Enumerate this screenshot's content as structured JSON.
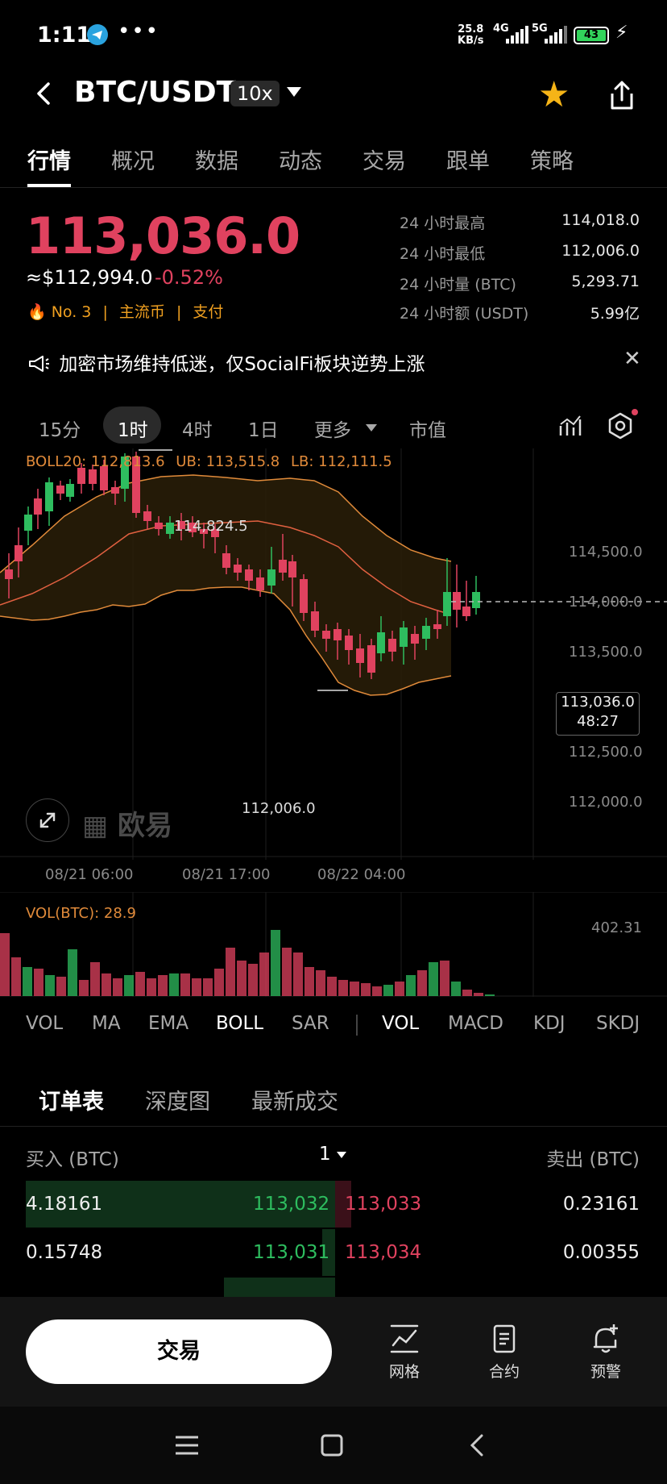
{
  "status_bar": {
    "time": "1:11",
    "net_speed_value": "25.8",
    "net_speed_unit": "KB/s",
    "sig_1": "4G",
    "sig_2": "5G",
    "battery": "43"
  },
  "header": {
    "pair": "BTC/USDT",
    "leverage": "10x"
  },
  "tabs": [
    "行情",
    "概况",
    "数据",
    "动态",
    "交易",
    "跟单",
    "策略"
  ],
  "price": {
    "last": "113,036.0",
    "approx_usd": "≈$112,994.0",
    "change": "-0.52%",
    "rank": "No. 3",
    "tag1": "主流币",
    "tag2": "支付"
  },
  "stats": [
    {
      "label": "24 小时最高",
      "value": "114,018.0"
    },
    {
      "label": "24 小时最低",
      "value": "112,006.0"
    },
    {
      "label": "24 小时量 (BTC)",
      "value": "5,293.71"
    },
    {
      "label": "24 小时额 (USDT)",
      "value": "5.99亿"
    }
  ],
  "news": "加密市场维持低迷，仅SocialFi板块逆势上涨",
  "timeframes": [
    "15分",
    "1时",
    "4时",
    "1日",
    "更多",
    "市值"
  ],
  "boll": {
    "mid": "BOLL20: 112,813.6",
    "ub": "UB: 113,515.8",
    "lb": "LB: 112,111.5"
  },
  "chart": {
    "y_labels": [
      "114,500.0",
      "114,000.0",
      "113,500.0",
      "112,500.0",
      "112,000.0"
    ],
    "x_labels": [
      "08/21 06:00",
      "08/21 17:00",
      "08/22 04:00"
    ],
    "high_marker": "114,824.5",
    "low_marker": "112,006.0",
    "current_price": "113,036.0",
    "countdown": "48:27",
    "watermark": "欧易",
    "colors": {
      "up": "#2ebd5f",
      "down": "#e0425f",
      "boll": "#e08a3a"
    }
  },
  "volume": {
    "label": "VOL(BTC): 28.9",
    "max": "402.31"
  },
  "indicators_main": [
    "VOL",
    "MA",
    "EMA",
    "BOLL",
    "SAR"
  ],
  "indicators_sub": [
    "VOL",
    "MACD",
    "KDJ",
    "SKDJ"
  ],
  "orderbook": {
    "tabs": [
      "订单表",
      "深度图",
      "最新成交"
    ],
    "buy_header": "买入 (BTC)",
    "step": "1",
    "sell_header": "卖出 (BTC)",
    "rows": [
      {
        "bid_qty": "4.18161",
        "bid_price": "113,032",
        "ask_price": "113,033",
        "ask_qty": "0.23161"
      },
      {
        "bid_qty": "0.15748",
        "bid_price": "113,031",
        "ask_price": "113,034",
        "ask_qty": "0.00355"
      }
    ]
  },
  "bottom_bar": {
    "trade": "交易",
    "grid": "网格",
    "contract": "合约",
    "alert": "预警"
  }
}
